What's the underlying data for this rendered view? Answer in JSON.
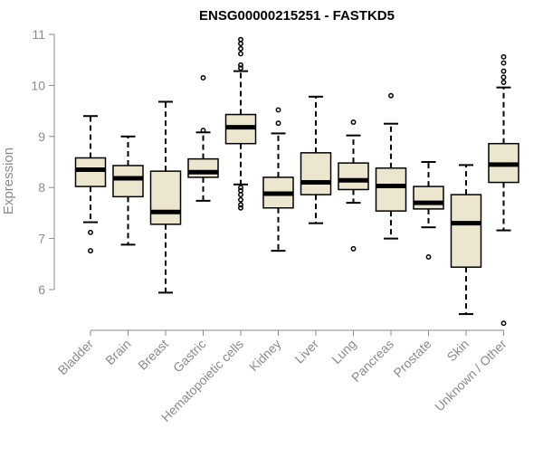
{
  "chart_data": {
    "type": "boxplot",
    "title": "ENSG00000215251 - FASTKD5",
    "xlabel": "",
    "ylabel": "Expression",
    "ylim": [
      5.3,
      11.0
    ],
    "yticks": [
      6,
      7,
      8,
      9,
      10,
      11
    ],
    "grid": false,
    "colors": {
      "box_fill": "#ede6cf",
      "stroke": "#000000",
      "axis": "#8a8a8a"
    },
    "categories": [
      "Bladder",
      "Brain",
      "Breast",
      "Gastric",
      "Hematopoietic cells",
      "Kidney",
      "Liver",
      "Lung",
      "Pancreas",
      "Prostate",
      "Skin",
      "Unknown / Other"
    ],
    "boxes": [
      {
        "category": "Bladder",
        "q1": 8.02,
        "median": 8.35,
        "q3": 8.58,
        "whisker_low": 7.32,
        "whisker_high": 9.4,
        "outliers": [
          7.12,
          6.76
        ]
      },
      {
        "category": "Brain",
        "q1": 7.82,
        "median": 8.18,
        "q3": 8.43,
        "whisker_low": 6.88,
        "whisker_high": 9.0,
        "outliers": []
      },
      {
        "category": "Breast",
        "q1": 7.28,
        "median": 7.52,
        "q3": 8.32,
        "whisker_low": 5.94,
        "whisker_high": 9.68,
        "outliers": []
      },
      {
        "category": "Gastric",
        "q1": 8.2,
        "median": 8.3,
        "q3": 8.56,
        "whisker_low": 7.74,
        "whisker_high": 9.08,
        "outliers": [
          10.15,
          9.12
        ]
      },
      {
        "category": "Hematopoietic cells",
        "q1": 8.86,
        "median": 9.18,
        "q3": 9.43,
        "whisker_low": 8.06,
        "whisker_high": 10.28,
        "outliers": [
          10.9,
          10.82,
          10.72,
          10.62,
          10.4,
          10.34,
          8.0,
          7.94,
          7.86,
          7.76,
          7.66,
          7.6
        ]
      },
      {
        "category": "Kidney",
        "q1": 7.6,
        "median": 7.88,
        "q3": 8.2,
        "whisker_low": 6.76,
        "whisker_high": 9.06,
        "outliers": [
          9.52,
          9.26
        ]
      },
      {
        "category": "Liver",
        "q1": 7.86,
        "median": 8.1,
        "q3": 8.68,
        "whisker_low": 7.3,
        "whisker_high": 9.78,
        "outliers": []
      },
      {
        "category": "Lung",
        "q1": 7.96,
        "median": 8.14,
        "q3": 8.48,
        "whisker_low": 7.7,
        "whisker_high": 9.02,
        "outliers": [
          9.28,
          6.8
        ]
      },
      {
        "category": "Pancreas",
        "q1": 7.54,
        "median": 8.03,
        "q3": 8.38,
        "whisker_low": 7.0,
        "whisker_high": 9.25,
        "outliers": [
          9.8
        ]
      },
      {
        "category": "Prostate",
        "q1": 7.58,
        "median": 7.7,
        "q3": 8.02,
        "whisker_low": 7.22,
        "whisker_high": 8.5,
        "outliers": [
          6.64
        ]
      },
      {
        "category": "Skin",
        "q1": 6.44,
        "median": 7.3,
        "q3": 7.86,
        "whisker_low": 5.52,
        "whisker_high": 8.44,
        "outliers": []
      },
      {
        "category": "Unknown / Other",
        "q1": 8.1,
        "median": 8.45,
        "q3": 8.86,
        "whisker_low": 7.16,
        "whisker_high": 9.96,
        "outliers": [
          10.56,
          10.44,
          10.28,
          10.16,
          10.06,
          5.34
        ]
      }
    ]
  }
}
